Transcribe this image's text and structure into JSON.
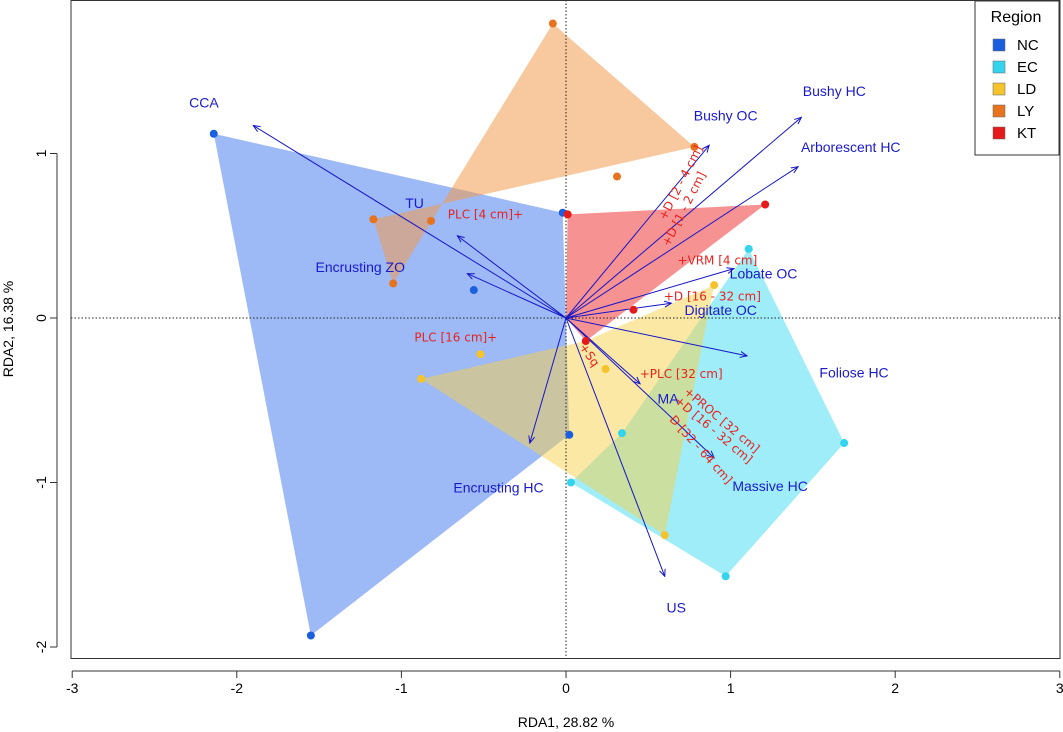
{
  "chart_data": {
    "type": "scatter",
    "subtype": "rda-biplot",
    "xlabel": "RDA1,  28.82 %",
    "ylabel": "RDA2,  16.38 %",
    "xlim": [
      -3,
      3
    ],
    "ylim": [
      -2.05,
      1.9
    ],
    "xticks": [
      -3,
      -2,
      -1,
      0,
      1,
      2,
      3
    ],
    "yticks": [
      -2,
      -1,
      0,
      1
    ],
    "xtick_labels": [
      "-3",
      "-2",
      "-1",
      "0",
      "1",
      "2",
      "3"
    ],
    "ytick_labels": [
      "-2",
      "-1",
      "0",
      "1"
    ],
    "reference_lines": {
      "x": 0,
      "y": 0,
      "style": "dotted"
    },
    "legend": {
      "title": "Region",
      "position": "top-right",
      "entries": [
        {
          "name": "NC",
          "color": "#1a5fe0"
        },
        {
          "name": "EC",
          "color": "#34d3ee"
        },
        {
          "name": "LD",
          "color": "#f5c32c"
        },
        {
          "name": "LY",
          "color": "#e8731e"
        },
        {
          "name": "KT",
          "color": "#e41a1c"
        }
      ]
    },
    "hulls": [
      {
        "region": "NC",
        "fill": "#3c74ee",
        "opacity": 0.5,
        "points": [
          [
            -2.14,
            1.12
          ],
          [
            -0.02,
            0.64
          ],
          [
            0.02,
            -0.71
          ],
          [
            -1.55,
            -1.93
          ]
        ]
      },
      {
        "region": "LY",
        "fill": "#f39a4e",
        "opacity": 0.55,
        "points": [
          [
            -0.08,
            1.79
          ],
          [
            0.78,
            1.04
          ],
          [
            -1.17,
            0.6
          ],
          [
            -1.05,
            0.21
          ]
        ]
      },
      {
        "region": "KT",
        "fill": "#f2494a",
        "opacity": 0.6,
        "points": [
          [
            0.01,
            0.63
          ],
          [
            1.21,
            0.69
          ],
          [
            0.12,
            -0.14
          ],
          [
            0.0,
            0.0
          ]
        ]
      },
      {
        "region": "EC",
        "fill": "#3fdcf2",
        "opacity": 0.5,
        "points": [
          [
            1.11,
            0.42
          ],
          [
            1.69,
            -0.76
          ],
          [
            0.97,
            -1.57
          ],
          [
            0.03,
            -1.0
          ],
          [
            0.34,
            -0.7
          ]
        ]
      },
      {
        "region": "LD",
        "fill": "#f8d24a",
        "opacity": 0.5,
        "points": [
          [
            0.9,
            0.2
          ],
          [
            0.6,
            -1.32
          ],
          [
            -0.88,
            -0.37
          ],
          [
            0.12,
            -0.14
          ]
        ]
      }
    ],
    "series": [
      {
        "name": "NC",
        "color": "#1a5fe0",
        "points": [
          [
            -2.14,
            1.12
          ],
          [
            -0.02,
            0.64
          ],
          [
            -0.56,
            0.17
          ],
          [
            0.02,
            -0.71
          ],
          [
            -1.55,
            -1.93
          ]
        ]
      },
      {
        "name": "EC",
        "color": "#34d3ee",
        "points": [
          [
            1.11,
            0.42
          ],
          [
            1.69,
            -0.76
          ],
          [
            0.97,
            -1.57
          ],
          [
            0.03,
            -1.0
          ],
          [
            0.34,
            -0.7
          ]
        ]
      },
      {
        "name": "LD",
        "color": "#f5c32c",
        "points": [
          [
            0.9,
            0.2
          ],
          [
            0.24,
            -0.31
          ],
          [
            0.6,
            -1.32
          ],
          [
            -0.52,
            -0.22
          ],
          [
            -0.88,
            -0.37
          ]
        ]
      },
      {
        "name": "LY",
        "color": "#e8731e",
        "points": [
          [
            -0.08,
            1.79
          ],
          [
            0.78,
            1.04
          ],
          [
            0.31,
            0.86
          ],
          [
            -1.17,
            0.6
          ],
          [
            -1.05,
            0.21
          ],
          [
            -0.82,
            0.59
          ]
        ]
      },
      {
        "name": "KT",
        "color": "#e41a1c",
        "points": [
          [
            0.01,
            0.63
          ],
          [
            1.21,
            0.69
          ],
          [
            0.41,
            0.05
          ],
          [
            0.12,
            -0.14
          ]
        ]
      }
    ],
    "species_vectors": [
      {
        "label": "CCA",
        "end": [
          -1.9,
          1.17
        ],
        "label_at": [
          -2.2,
          1.31
        ]
      },
      {
        "label": "TU",
        "end": [
          -0.66,
          0.5
        ],
        "label_at": [
          -0.92,
          0.7
        ]
      },
      {
        "label": "Encrusting ZO",
        "end": [
          -0.6,
          0.27
        ],
        "label_at": [
          -1.25,
          0.31
        ]
      },
      {
        "label": "Bushy OC",
        "end": [
          0.87,
          1.05
        ],
        "label_at": [
          0.97,
          1.23
        ]
      },
      {
        "label": "Bushy HC",
        "end": [
          1.43,
          1.22
        ],
        "label_at": [
          1.63,
          1.38
        ]
      },
      {
        "label": "Arborescent HC",
        "end": [
          1.41,
          0.92
        ],
        "label_at": [
          1.73,
          1.04
        ]
      },
      {
        "label": "Lobate OC",
        "end": [
          1.02,
          0.3
        ],
        "label_at": [
          1.2,
          0.27
        ]
      },
      {
        "label": "Digitate OC",
        "end": [
          0.64,
          0.09
        ],
        "label_at": [
          0.94,
          0.05
        ]
      },
      {
        "label": "Foliose HC",
        "end": [
          1.1,
          -0.23
        ],
        "label_at": [
          1.75,
          -0.33
        ]
      },
      {
        "label": "MA",
        "end": [
          0.45,
          -0.4
        ],
        "label_at": [
          0.62,
          -0.49
        ]
      },
      {
        "label": "Massive HC",
        "end": [
          0.9,
          -0.85
        ],
        "label_at": [
          1.24,
          -1.02
        ]
      },
      {
        "label": "Encrusting HC",
        "end": [
          -0.22,
          -0.76
        ],
        "label_at": [
          -0.41,
          -1.03
        ]
      },
      {
        "label": "US",
        "end": [
          0.6,
          -1.57
        ],
        "label_at": [
          0.67,
          -1.76
        ]
      }
    ],
    "env_variables": [
      {
        "label": "PLC [4 cm]",
        "label_at": [
          -0.52,
          0.63
        ],
        "rotation": 0,
        "marker": "after"
      },
      {
        "label": "PLC [16 cm]",
        "label_at": [
          -0.7,
          -0.12
        ],
        "rotation": 0,
        "marker": "after"
      },
      {
        "label": "D [2 - 4 cm]",
        "label_at": [
          0.71,
          0.85
        ],
        "rotation": -63,
        "marker": "before"
      },
      {
        "label": "D [1 - 2 cm]",
        "label_at": [
          0.73,
          0.69
        ],
        "rotation": -63,
        "marker": "before"
      },
      {
        "label": "VRM [4 cm]",
        "label_at": [
          0.95,
          0.35
        ],
        "rotation": 0,
        "marker": "before"
      },
      {
        "label": "D [16 - 32 cm]",
        "label_at": [
          0.92,
          0.13
        ],
        "rotation": 0,
        "marker": "before"
      },
      {
        "label": "Sq",
        "label_at": [
          0.16,
          -0.25
        ],
        "rotation": 55,
        "marker": "before"
      },
      {
        "label": "PLC [32 cm]",
        "label_at": [
          0.73,
          -0.34
        ],
        "rotation": 0,
        "marker": "before"
      },
      {
        "label": "PROC [32 cm]",
        "label_at": [
          0.97,
          -0.64
        ],
        "rotation": 40,
        "marker": "before"
      },
      {
        "label": "D [16 - 32 cm]",
        "label_at": [
          0.92,
          -0.7
        ],
        "rotation": 40,
        "marker": "before"
      },
      {
        "label": "D [32 - 64 cm]",
        "label_at": [
          0.82,
          -0.8
        ],
        "rotation": 48,
        "marker": "none"
      }
    ],
    "colors": {
      "vector": "#1616c8",
      "env_text": "#e8221e",
      "species_text": "#1a1acc"
    }
  }
}
